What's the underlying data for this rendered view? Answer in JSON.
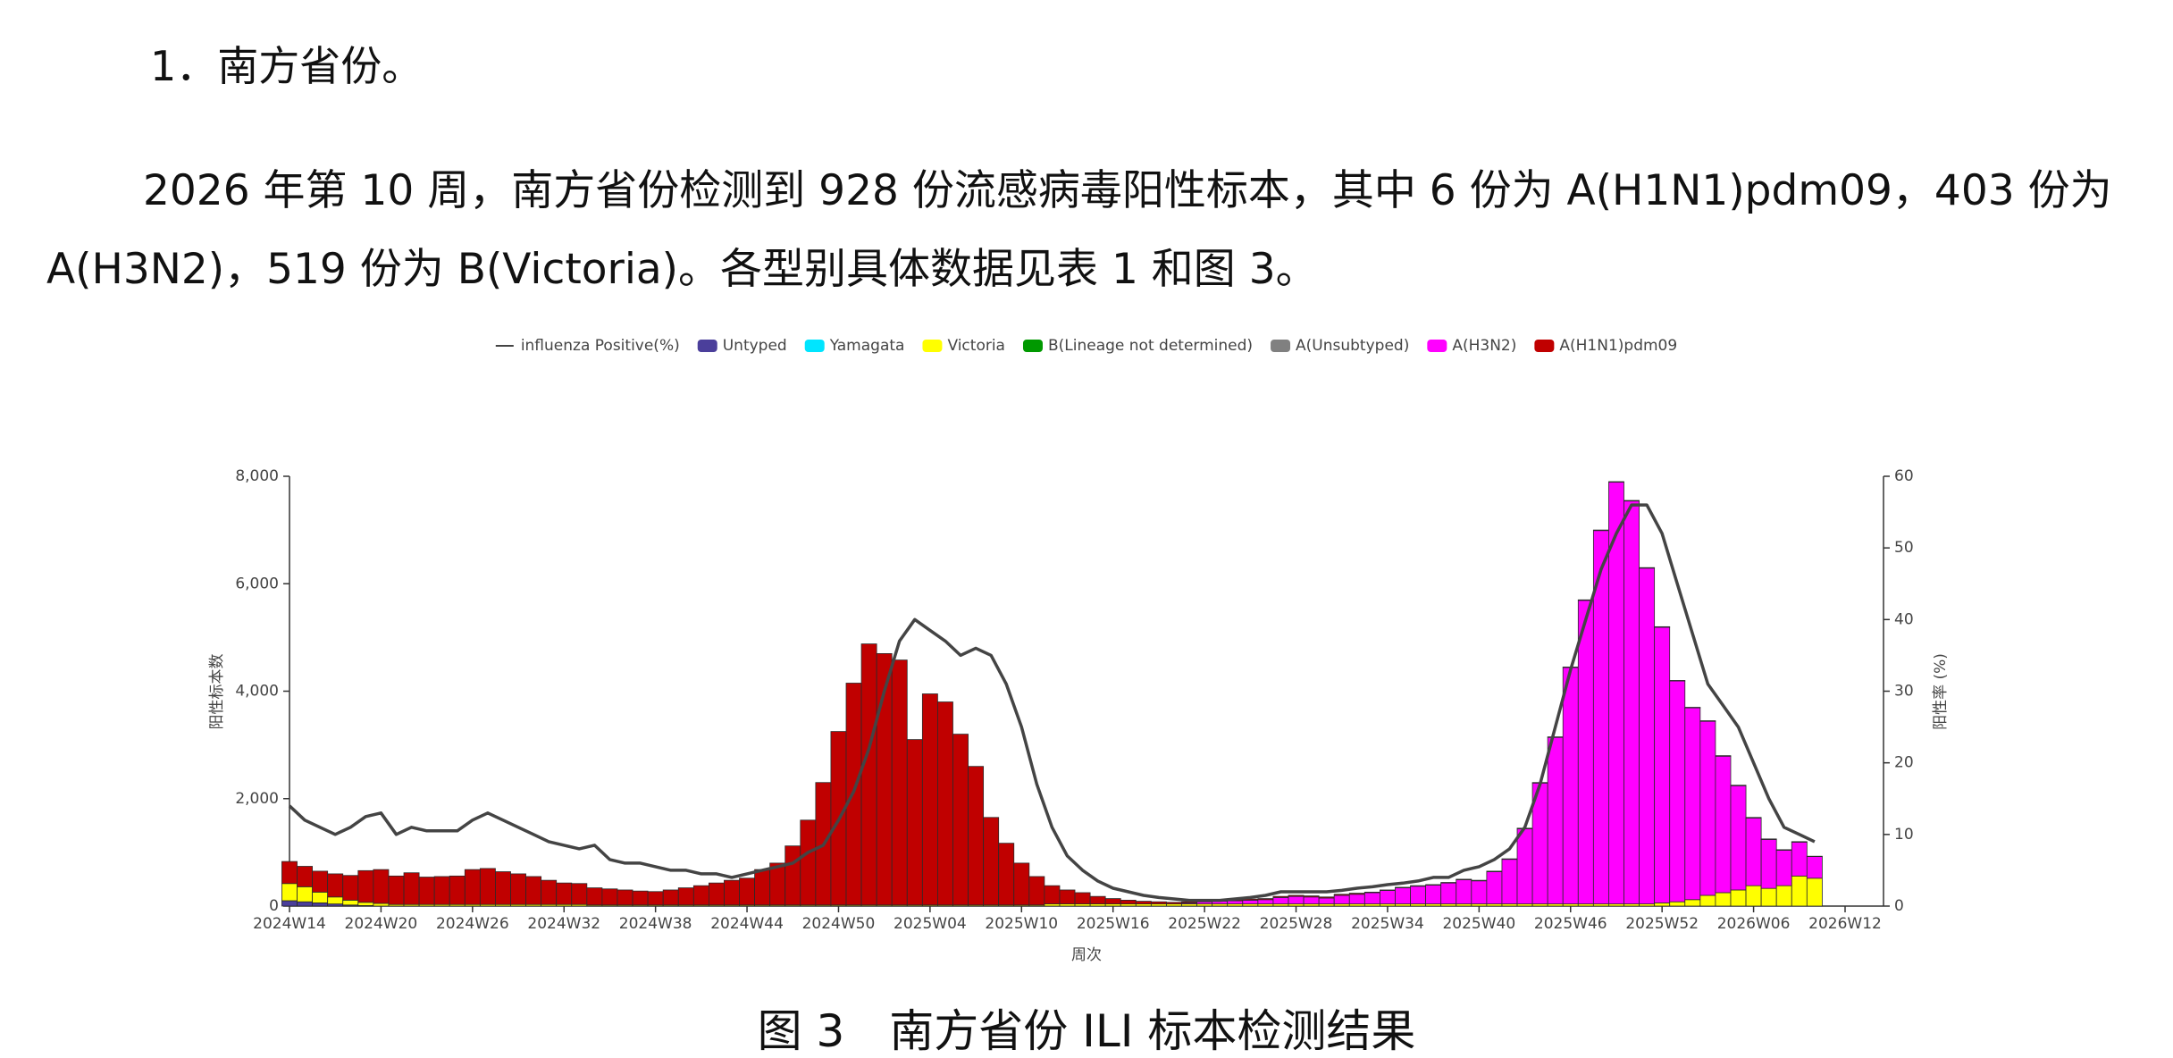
{
  "heading": "1．南方省份。",
  "paragraph": "2026 年第 10 周，南方省份检测到 928 份流感病毒阳性标本，其中 6 份为 A(H1N1)pdm09，403 份为 A(H3N2)，519 份为 B(Victoria)。各型别具体数据见表 1 和图 3。",
  "chart_data": {
    "type": "bar",
    "stacked": true,
    "y_label": "阳性标本数",
    "y2_label": "阳性率 (%)",
    "x_label": "周次",
    "legend": "top",
    "categories": [
      "2024W14",
      null,
      null,
      null,
      null,
      null,
      "2024W20",
      null,
      null,
      null,
      null,
      null,
      "2024W26",
      null,
      null,
      null,
      null,
      null,
      "2024W32",
      null,
      null,
      null,
      null,
      null,
      "2024W38",
      null,
      null,
      null,
      null,
      null,
      "2024W44",
      null,
      null,
      null,
      null,
      null,
      "2024W50",
      null,
      null,
      null,
      null,
      null,
      "2025W04",
      null,
      null,
      null,
      null,
      null,
      "2025W10",
      null,
      null,
      null,
      null,
      null,
      "2025W16",
      null,
      null,
      null,
      null,
      null,
      "2025W22",
      null,
      null,
      null,
      null,
      null,
      "2025W28",
      null,
      null,
      null,
      null,
      null,
      "2025W34",
      null,
      null,
      null,
      null,
      null,
      "2025W40",
      null,
      null,
      null,
      null,
      null,
      "2025W46",
      null,
      null,
      null,
      null,
      null,
      "2025W52",
      null,
      null,
      null,
      null,
      null,
      "2026W06",
      null,
      null,
      null,
      null,
      null,
      "2026W12"
    ],
    "ylim": [
      0,
      8000
    ],
    "yticks": [
      0,
      {
        "value": 2000,
        "label": "2,000"
      },
      {
        "value": 4000,
        "label": "4,000"
      },
      {
        "value": 6000,
        "label": "6,000"
      },
      {
        "value": 8000,
        "label": "8,000"
      }
    ],
    "y2lim": [
      0,
      60
    ],
    "y2ticks": [
      0,
      10,
      20,
      30,
      40,
      50,
      60
    ],
    "series": [
      {
        "name": "influenza Positive(%)",
        "type": "line",
        "axis": "y2",
        "color": "#444444",
        "values": [
          14,
          12,
          11,
          10,
          11,
          12.5,
          13,
          10,
          11,
          10.5,
          10.5,
          10.5,
          12,
          13,
          12,
          11,
          10,
          9,
          8.5,
          8,
          8.5,
          6.5,
          6,
          6,
          5.5,
          5,
          5,
          4.5,
          4.5,
          4,
          4.5,
          5,
          5.5,
          6,
          7.5,
          8.5,
          12,
          16,
          22,
          30,
          37,
          40,
          38.5,
          37,
          35,
          36,
          35,
          31,
          25,
          17,
          11,
          7,
          5,
          3.5,
          2.5,
          2,
          1.5,
          1.2,
          1,
          0.8,
          0.8,
          0.8,
          1,
          1.2,
          1.5,
          2,
          2,
          2,
          2,
          2.2,
          2.5,
          2.7,
          3,
          3.2,
          3.5,
          4,
          4,
          5,
          5.5,
          6.5,
          8,
          11,
          17,
          25,
          33,
          40,
          47,
          52,
          56,
          56,
          52,
          45,
          38,
          31,
          28,
          25,
          20,
          15,
          11,
          10,
          9,
          null,
          null
        ]
      },
      {
        "name": "Untyped",
        "color": "#4b3f9b",
        "values": [
          100,
          80,
          60,
          40,
          20,
          10,
          0,
          0,
          0,
          0,
          0,
          0,
          0,
          0,
          0,
          0,
          0,
          0,
          0,
          0,
          0,
          0,
          0,
          0,
          0,
          0,
          0,
          0,
          0,
          0,
          0,
          0,
          0,
          0,
          0,
          0,
          0,
          0,
          0,
          0,
          0,
          0,
          0,
          0,
          0,
          0,
          0,
          0,
          0,
          0,
          0,
          0,
          0,
          0,
          0,
          0,
          0,
          0,
          0,
          0,
          0,
          0,
          0,
          0,
          0,
          0,
          0,
          0,
          0,
          0,
          0,
          0,
          0,
          0,
          0,
          0,
          0,
          0,
          0,
          0,
          0,
          0,
          0,
          0,
          0,
          0,
          0,
          0,
          0,
          0,
          0,
          0,
          0,
          0,
          0,
          0,
          0,
          0,
          0,
          0,
          0,
          null,
          null
        ]
      },
      {
        "name": "Yamagata",
        "color": "#00e5ff",
        "values": [
          0,
          0,
          0,
          0,
          0,
          0,
          0,
          0,
          0,
          0,
          0,
          0,
          0,
          0,
          0,
          0,
          0,
          0,
          0,
          0,
          0,
          0,
          0,
          0,
          0,
          0,
          0,
          0,
          0,
          0,
          0,
          0,
          0,
          0,
          0,
          0,
          0,
          0,
          0,
          0,
          0,
          0,
          0,
          0,
          0,
          0,
          0,
          0,
          0,
          0,
          0,
          0,
          0,
          0,
          0,
          0,
          0,
          0,
          0,
          0,
          0,
          0,
          0,
          0,
          0,
          0,
          0,
          0,
          0,
          0,
          0,
          0,
          0,
          0,
          0,
          0,
          0,
          0,
          0,
          0,
          0,
          0,
          0,
          0,
          0,
          0,
          0,
          0,
          0,
          0,
          0,
          0,
          0,
          0,
          0,
          0,
          0,
          0,
          0,
          0,
          0,
          null,
          null
        ]
      },
      {
        "name": "Victoria",
        "color": "#ffff00",
        "values": [
          320,
          280,
          200,
          130,
          90,
          60,
          50,
          30,
          30,
          30,
          30,
          30,
          30,
          30,
          30,
          30,
          30,
          30,
          30,
          30,
          20,
          20,
          20,
          20,
          20,
          20,
          20,
          20,
          20,
          20,
          20,
          20,
          20,
          20,
          20,
          20,
          20,
          20,
          20,
          20,
          20,
          20,
          20,
          20,
          20,
          20,
          20,
          20,
          20,
          20,
          40,
          40,
          40,
          40,
          40,
          40,
          40,
          40,
          40,
          40,
          40,
          40,
          40,
          40,
          40,
          40,
          40,
          40,
          40,
          40,
          40,
          40,
          40,
          40,
          40,
          40,
          40,
          40,
          40,
          40,
          40,
          40,
          40,
          40,
          40,
          40,
          40,
          40,
          40,
          40,
          60,
          80,
          120,
          200,
          250,
          300,
          380,
          330,
          380,
          560,
          519,
          null,
          null
        ]
      },
      {
        "name": "B(Lineage not determined)",
        "color": "#009900",
        "values": [
          0,
          0,
          0,
          0,
          0,
          0,
          0,
          0,
          0,
          0,
          0,
          0,
          0,
          0,
          0,
          0,
          0,
          0,
          0,
          0,
          0,
          0,
          0,
          0,
          0,
          0,
          0,
          0,
          0,
          0,
          0,
          0,
          0,
          0,
          0,
          0,
          0,
          0,
          0,
          0,
          0,
          0,
          0,
          0,
          0,
          0,
          0,
          0,
          0,
          0,
          0,
          0,
          0,
          0,
          0,
          0,
          0,
          0,
          0,
          0,
          0,
          0,
          0,
          0,
          0,
          0,
          0,
          0,
          0,
          0,
          0,
          0,
          0,
          0,
          0,
          0,
          0,
          0,
          0,
          0,
          0,
          0,
          0,
          0,
          0,
          0,
          0,
          0,
          0,
          0,
          0,
          0,
          0,
          0,
          0,
          0,
          0,
          0,
          0,
          0,
          0,
          null,
          null
        ]
      },
      {
        "name": "A(Unsubtyped)",
        "color": "#808080",
        "values": [
          0,
          0,
          0,
          0,
          0,
          0,
          0,
          0,
          0,
          0,
          0,
          0,
          0,
          0,
          0,
          0,
          0,
          0,
          0,
          0,
          0,
          0,
          0,
          0,
          0,
          0,
          0,
          0,
          0,
          0,
          0,
          0,
          0,
          0,
          0,
          0,
          0,
          0,
          0,
          0,
          0,
          0,
          0,
          0,
          0,
          0,
          0,
          0,
          0,
          0,
          0,
          0,
          0,
          0,
          0,
          0,
          0,
          0,
          0,
          0,
          0,
          0,
          0,
          0,
          0,
          0,
          0,
          0,
          0,
          0,
          0,
          0,
          0,
          0,
          0,
          0,
          0,
          0,
          0,
          0,
          0,
          0,
          0,
          0,
          0,
          0,
          0,
          0,
          0,
          0,
          0,
          0,
          0,
          0,
          0,
          0,
          0,
          0,
          0,
          0,
          0,
          null,
          null
        ]
      },
      {
        "name": "A(H3N2)",
        "color": "#ff00ff",
        "values": [
          0,
          0,
          0,
          0,
          0,
          0,
          0,
          0,
          0,
          0,
          0,
          0,
          0,
          0,
          0,
          0,
          0,
          0,
          0,
          0,
          0,
          0,
          0,
          0,
          0,
          0,
          0,
          0,
          0,
          0,
          0,
          0,
          0,
          0,
          0,
          0,
          0,
          0,
          0,
          0,
          0,
          0,
          0,
          0,
          0,
          0,
          0,
          0,
          0,
          0,
          0,
          0,
          0,
          0,
          0,
          0,
          0,
          0,
          0,
          20,
          40,
          50,
          60,
          70,
          80,
          120,
          140,
          130,
          110,
          160,
          180,
          210,
          250,
          300,
          330,
          350,
          390,
          450,
          430,
          600,
          830,
          1400,
          2250,
          3100,
          4400,
          5650,
          6950,
          7850,
          7500,
          6250,
          5130,
          4110,
          3570,
          3240,
          2540,
          1940,
          1260,
          910,
          660,
          630,
          403,
          null,
          null
        ]
      },
      {
        "name": "A(H1N1)pdm09",
        "color": "#c00000",
        "values": [
          410,
          380,
          390,
          430,
          460,
          590,
          630,
          530,
          590,
          510,
          520,
          530,
          650,
          670,
          610,
          570,
          520,
          450,
          400,
          390,
          320,
          300,
          280,
          260,
          250,
          280,
          320,
          360,
          410,
          460,
          500,
          660,
          780,
          1100,
          1580,
          2280,
          3230,
          4130,
          4860,
          4680,
          4560,
          3080,
          3930,
          3780,
          3180,
          2580,
          1630,
          1150,
          780,
          530,
          340,
          260,
          210,
          140,
          100,
          70,
          50,
          40,
          30,
          20,
          20,
          20,
          20,
          20,
          20,
          20,
          20,
          20,
          20,
          20,
          20,
          10,
          10,
          10,
          10,
          10,
          10,
          10,
          10,
          10,
          10,
          10,
          10,
          10,
          10,
          10,
          10,
          10,
          10,
          10,
          10,
          10,
          10,
          10,
          10,
          10,
          10,
          10,
          10,
          10,
          6,
          null,
          null
        ]
      }
    ]
  },
  "caption": "图 3　南方省份 ILI 标本检测结果"
}
